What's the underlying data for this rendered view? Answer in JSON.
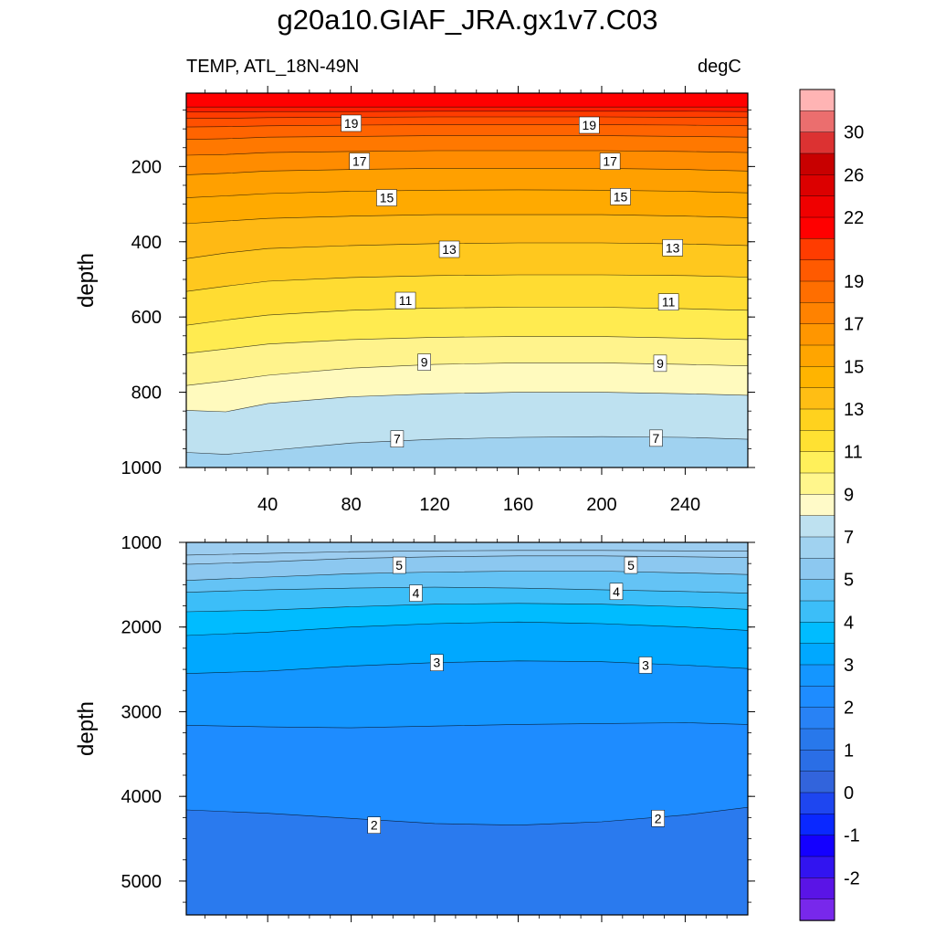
{
  "title": "g20a10.GIAF_JRA.gx1v7.C03",
  "subtitle_left": "TEMP, ATL_18N-49N",
  "subtitle_right": "degC",
  "chart_data": [
    {
      "type": "heatmap",
      "panel": "upper",
      "variable": "TEMP",
      "region": "ATL_18N-49N",
      "units": "degC",
      "xlabel": "",
      "ylabel": "depth",
      "xlim": [
        1,
        270
      ],
      "ylim": [
        1000,
        5
      ],
      "x_ticks": [
        40,
        80,
        120,
        160,
        200,
        240
      ],
      "y_ticks": [
        200,
        400,
        600,
        800,
        1000
      ],
      "contour_levels": [
        30,
        29,
        28,
        27,
        26,
        25,
        24,
        23,
        22,
        21,
        20,
        19,
        18,
        17,
        16,
        15,
        14,
        13,
        12,
        11,
        10,
        9,
        8,
        7,
        6.5
      ],
      "contour_depths": {
        "x": [
          1,
          20,
          40,
          80,
          120,
          160,
          200,
          240,
          270
        ],
        "levels": [
          {
            "level": 22,
            "depth": [
              42,
              42,
              42,
              42,
              42,
              42,
              42,
              42,
              42
            ]
          },
          {
            "level": 21,
            "depth": [
              55,
              55,
              54,
              54,
              53,
              53,
              53,
              53,
              54
            ]
          },
          {
            "level": 20,
            "depth": [
              72,
              72,
              70,
              69,
              68,
              68,
              68,
              69,
              70
            ]
          },
          {
            "level": 19,
            "depth": [
              95,
              94,
              92,
              90,
              89,
              89,
              89,
              90,
              92
            ]
          },
          {
            "level": 18,
            "depth": [
              128,
              126,
              122,
              120,
              118,
              118,
              118,
              120,
              122
            ]
          },
          {
            "level": 17,
            "depth": [
              170,
              168,
              163,
              160,
              158,
              158,
              158,
              160,
              163
            ]
          },
          {
            "level": 16,
            "depth": [
              222,
              218,
              212,
              208,
              205,
              205,
              205,
              208,
              212
            ]
          },
          {
            "level": 15,
            "depth": [
              283,
              278,
              272,
              266,
              263,
              262,
              263,
              266,
              270
            ]
          },
          {
            "level": 14,
            "depth": [
              352,
              345,
              338,
              332,
              328,
              328,
              328,
              332,
              336
            ]
          },
          {
            "level": 13,
            "depth": [
              445,
              430,
              418,
              410,
              405,
              403,
              403,
              406,
              410
            ]
          },
          {
            "level": 12,
            "depth": [
              532,
              518,
              505,
              495,
              490,
              488,
              488,
              490,
              494
            ]
          },
          {
            "level": 11,
            "depth": [
              622,
              608,
              595,
              582,
              576,
              574,
              574,
              578,
              582
            ]
          },
          {
            "level": 10,
            "depth": [
              697,
              685,
              672,
              660,
              654,
              652,
              652,
              656,
              660
            ]
          },
          {
            "level": 9,
            "depth": [
              782,
              770,
              755,
              736,
              726,
              722,
              722,
              726,
              730
            ]
          },
          {
            "level": 8,
            "depth": [
              848,
              852,
              830,
              812,
              804,
              800,
              800,
              804,
              808
            ]
          },
          {
            "level": 7,
            "depth": [
              960,
              965,
              955,
              935,
              925,
              920,
              918,
              920,
              925
            ]
          }
        ]
      },
      "contour_labels": [
        {
          "text": "19",
          "x": 80,
          "depth": 85
        },
        {
          "text": "19",
          "x": 194,
          "depth": 90
        },
        {
          "text": "17",
          "x": 84,
          "depth": 186
        },
        {
          "text": "17",
          "x": 204,
          "depth": 186
        },
        {
          "text": "15",
          "x": 97,
          "depth": 283
        },
        {
          "text": "15",
          "x": 209,
          "depth": 280
        },
        {
          "text": "13",
          "x": 127,
          "depth": 420
        },
        {
          "text": "13",
          "x": 234,
          "depth": 416
        },
        {
          "text": "11",
          "x": 106,
          "depth": 556
        },
        {
          "text": "11",
          "x": 232,
          "depth": 560
        },
        {
          "text": "9",
          "x": 115,
          "depth": 720
        },
        {
          "text": "9",
          "x": 228,
          "depth": 723
        },
        {
          "text": "7",
          "x": 102,
          "depth": 924
        },
        {
          "text": "7",
          "x": 226,
          "depth": 922
        }
      ]
    },
    {
      "type": "heatmap",
      "panel": "lower",
      "variable": "TEMP",
      "region": "ATL_18N-49N",
      "units": "degC",
      "xlabel": "",
      "ylabel": "depth",
      "xlim": [
        1,
        270
      ],
      "ylim": [
        5400,
        1000
      ],
      "y_ticks": [
        1000,
        2000,
        3000,
        4000,
        5000
      ],
      "contour_levels": [
        6,
        5.5,
        5,
        4.5,
        4,
        3.5,
        3,
        2.5,
        2
      ],
      "contour_depths": {
        "x": [
          1,
          40,
          80,
          120,
          160,
          200,
          240,
          270
        ],
        "levels": [
          {
            "level": 6.5,
            "depth": [
              1150,
              1130,
              1110,
              1100,
              1095,
              1095,
              1100,
              1100
            ]
          },
          {
            "level": 6,
            "depth": [
              1260,
              1230,
              1190,
              1170,
              1160,
              1160,
              1170,
              1180
            ]
          },
          {
            "level": 5.5,
            "depth": [
              1450,
              1410,
              1370,
              1350,
              1340,
              1340,
              1360,
              1380
            ]
          },
          {
            "level": 5,
            "depth": [
              1590,
              1560,
              1540,
              1530,
              1540,
              1560,
              1580,
              1600
            ]
          },
          {
            "level": 4.5,
            "depth": [
              1820,
              1800,
              1760,
              1730,
              1720,
              1730,
              1760,
              1790
            ]
          },
          {
            "level": 4,
            "depth": [
              2100,
              2060,
              2000,
              1960,
              1940,
              1960,
              2000,
              2040
            ]
          },
          {
            "level": 3.5,
            "depth": [
              2550,
              2520,
              2460,
              2420,
              2400,
              2410,
              2450,
              2490
            ]
          },
          {
            "level": 3,
            "depth": [
              3160,
              3180,
              3190,
              3170,
              3150,
              3140,
              3130,
              3150
            ]
          },
          {
            "level": 2,
            "depth": [
              4160,
              4200,
              4260,
              4320,
              4340,
              4300,
              4220,
              4130
            ]
          }
        ]
      },
      "contour_labels": [
        {
          "text": "5",
          "x": 103,
          "depth": 1270
        },
        {
          "text": "5",
          "x": 214,
          "depth": 1270
        },
        {
          "text": "4",
          "x": 111,
          "depth": 1600
        },
        {
          "text": "4",
          "x": 207,
          "depth": 1580
        },
        {
          "text": "3",
          "x": 121,
          "depth": 2420
        },
        {
          "text": "3",
          "x": 221,
          "depth": 2450
        },
        {
          "text": "2",
          "x": 91,
          "depth": 4340
        },
        {
          "text": "2",
          "x": 227,
          "depth": 4260
        }
      ]
    }
  ],
  "colorbar": {
    "labels": [
      "30",
      "26",
      "22",
      "19",
      "17",
      "15",
      "13",
      "11",
      "9",
      "7",
      "5",
      "4",
      "3",
      "2",
      "1",
      "0",
      "-1",
      "-2"
    ],
    "colors": [
      "#ffb4b4",
      "#eb6e6e",
      "#dc3232",
      "#c80000",
      "#dc0000",
      "#f00000",
      "#ff0000",
      "#ff3c00",
      "#ff5a00",
      "#ff6e00",
      "#ff8200",
      "#ff9600",
      "#ffa500",
      "#ffb400",
      "#ffbe14",
      "#ffd21e",
      "#ffe132",
      "#fff05a",
      "#fff68c",
      "#fffac8",
      "#bee1f0",
      "#a0d2f0",
      "#8cc8f0",
      "#64c3f5",
      "#3cbef8",
      "#00bcff",
      "#00a8ff",
      "#1496ff",
      "#1e8cff",
      "#2882f5",
      "#2878eb",
      "#2a6ee6",
      "#3264dc",
      "#1e46f0",
      "#0a28ff",
      "#1400ff",
      "#3214f0",
      "#5a14e6",
      "#7828eb"
    ]
  }
}
